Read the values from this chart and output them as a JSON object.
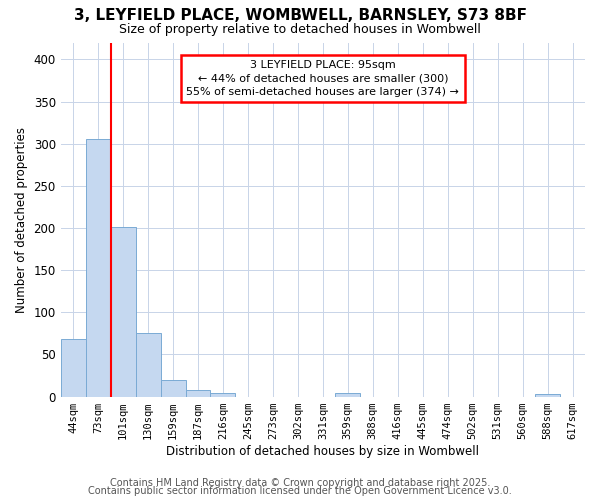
{
  "title1": "3, LEYFIELD PLACE, WOMBWELL, BARNSLEY, S73 8BF",
  "title2": "Size of property relative to detached houses in Wombwell",
  "xlabel": "Distribution of detached houses by size in Wombwell",
  "ylabel": "Number of detached properties",
  "categories": [
    "44sqm",
    "73sqm",
    "101sqm",
    "130sqm",
    "159sqm",
    "187sqm",
    "216sqm",
    "245sqm",
    "273sqm",
    "302sqm",
    "331sqm",
    "359sqm",
    "388sqm",
    "416sqm",
    "445sqm",
    "474sqm",
    "502sqm",
    "531sqm",
    "560sqm",
    "588sqm",
    "617sqm"
  ],
  "values": [
    68,
    305,
    201,
    76,
    20,
    8,
    4,
    0,
    0,
    0,
    0,
    4,
    0,
    0,
    0,
    0,
    0,
    0,
    0,
    3,
    0
  ],
  "bar_color": "#c5d8f0",
  "bar_edge_color": "#7aaad4",
  "bar_edge_width": 0.7,
  "grid_color": "#c8d4e8",
  "bg_color": "#ffffff",
  "plot_bg_color": "#ffffff",
  "red_line_x": 2.0,
  "annotation_text": "3 LEYFIELD PLACE: 95sqm\n← 44% of detached houses are smaller (300)\n55% of semi-detached houses are larger (374) →",
  "ylim": [
    0,
    420
  ],
  "yticks": [
    0,
    50,
    100,
    150,
    200,
    250,
    300,
    350,
    400
  ],
  "title1_fontsize": 11,
  "title2_fontsize": 9,
  "footer1": "Contains HM Land Registry data © Crown copyright and database right 2025.",
  "footer2": "Contains public sector information licensed under the Open Government Licence v3.0.",
  "footer_fontsize": 7
}
